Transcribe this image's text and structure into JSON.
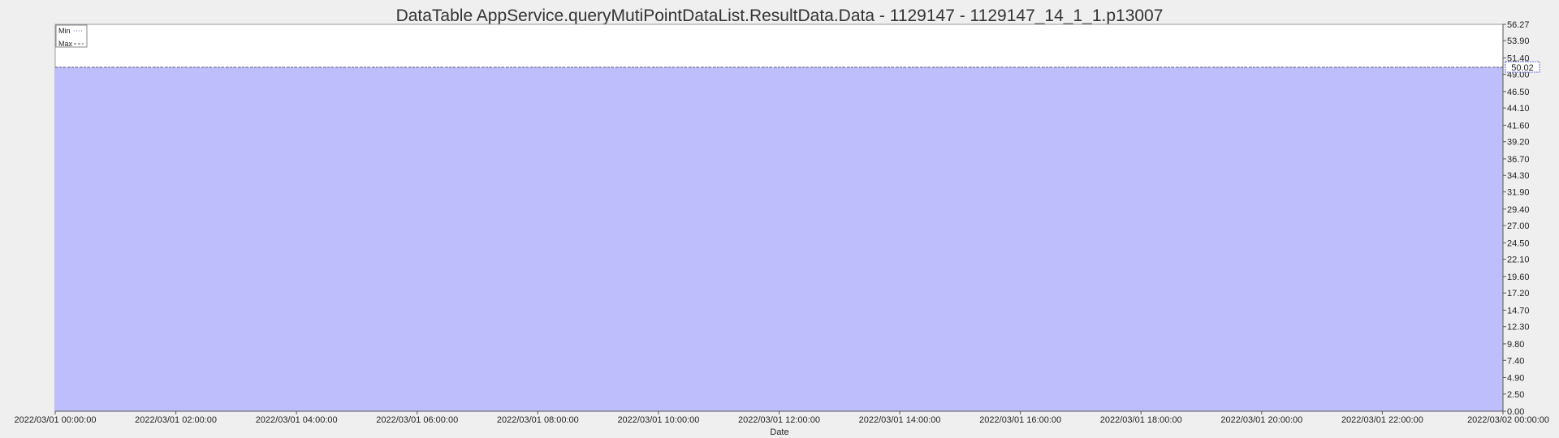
{
  "chart_data": {
    "type": "area",
    "title": "DataTable AppService.queryMutiPointDataList.ResultData.Data - 1129147 - 1129147_14_1_1.p13007",
    "xlabel": "Date",
    "ylabel": "",
    "x_ticks": [
      "2022/03/01 00:00:00",
      "2022/03/01 02:00:00",
      "2022/03/01 04:00:00",
      "2022/03/01 06:00:00",
      "2022/03/01 08:00:00",
      "2022/03/01 10:00:00",
      "2022/03/01 12:00:00",
      "2022/03/01 14:00:00",
      "2022/03/01 16:00:00",
      "2022/03/01 18:00:00",
      "2022/03/01 20:00:00",
      "2022/03/01 22:00:00",
      "2022/03/02 00:00:00"
    ],
    "y_ticks": [
      "56.27",
      "53.90",
      "51.40",
      "49.00",
      "46.50",
      "44.10",
      "41.60",
      "39.20",
      "36.70",
      "34.30",
      "31.90",
      "29.40",
      "27.00",
      "24.50",
      "22.10",
      "19.60",
      "17.20",
      "14.70",
      "12.30",
      "9.80",
      "7.40",
      "4.90",
      "2.50",
      "0.00"
    ],
    "ylim": [
      0,
      56.27
    ],
    "xlim": [
      "2022/03/01 00:00:00",
      "2022/03/02 00:00:00"
    ],
    "y_axis_side": "right",
    "grid": false,
    "legend_position": "top-left",
    "current_value_label": "50.02",
    "series": [
      {
        "name": "Min",
        "style": "dotted",
        "color": "#6a6ad8",
        "x": [
          "2022/03/01 00:00:00",
          "2022/03/02 00:00:00"
        ],
        "values": [
          50.02,
          50.02
        ]
      },
      {
        "name": "Max",
        "style": "dashed",
        "color": "#555577",
        "x": [
          "2022/03/01 00:00:00",
          "2022/03/02 00:00:00"
        ],
        "values": [
          50.02,
          50.02
        ]
      }
    ],
    "fill_color": "#bebefc",
    "plot_background": "#ffffff"
  }
}
